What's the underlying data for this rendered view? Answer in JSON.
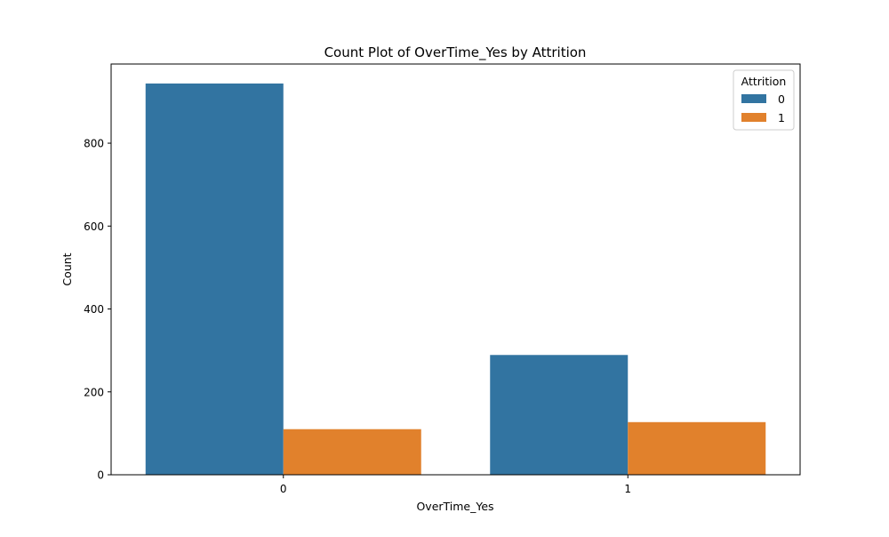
{
  "chart_data": {
    "type": "bar",
    "title": "Count Plot of OverTime_Yes by Attrition",
    "xlabel": "OverTime_Yes",
    "ylabel": "Count",
    "categories": [
      "0",
      "1"
    ],
    "series": [
      {
        "name": "0",
        "values": [
          944,
          289
        ],
        "color": "#3274a1"
      },
      {
        "name": "1",
        "values": [
          110,
          127
        ],
        "color": "#e1812c"
      }
    ],
    "ylim": [
      0,
      991
    ],
    "yticks": [
      0,
      200,
      400,
      600,
      800
    ],
    "legend": {
      "title": "Attrition",
      "placement": "top-right"
    },
    "grid": false
  }
}
